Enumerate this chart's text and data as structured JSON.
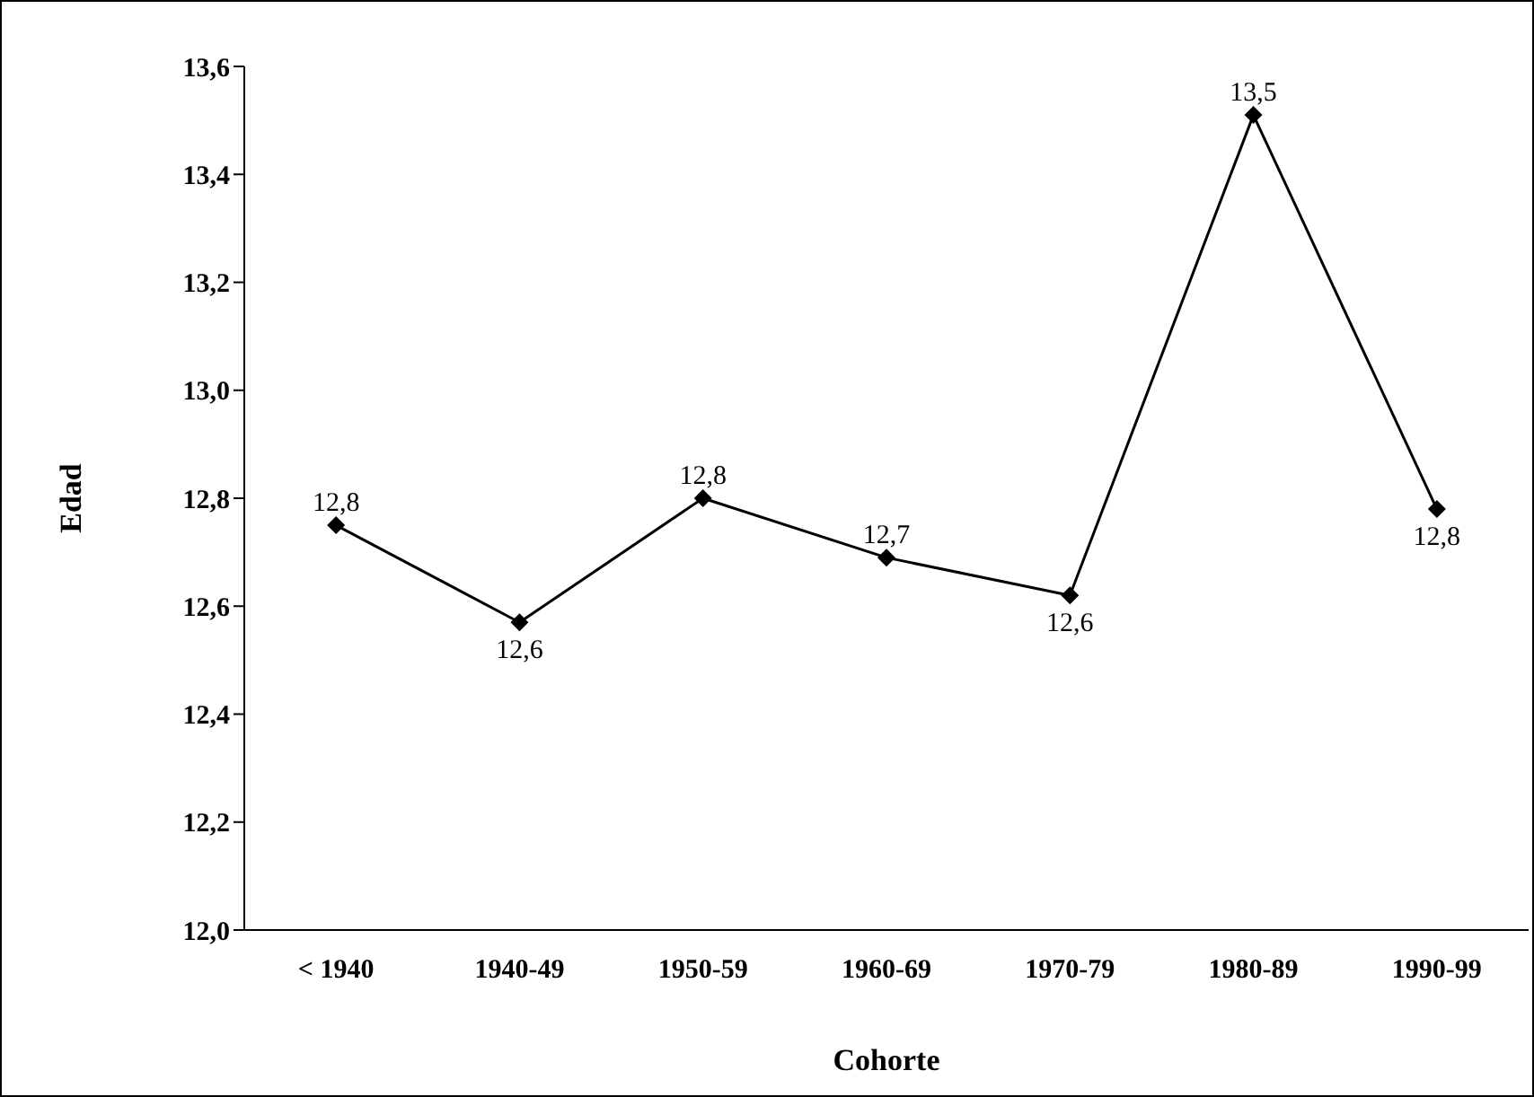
{
  "chart_data": {
    "type": "line",
    "xlabel": "Cohorte",
    "ylabel": "Edad",
    "categories": [
      "< 1940",
      "1940-49",
      "1950-59",
      "1960-69",
      "1970-79",
      "1980-89",
      "1990-99"
    ],
    "series": [
      {
        "color": "#000000",
        "values": [
          12.75,
          12.57,
          12.8,
          12.69,
          12.62,
          13.51,
          12.78
        ],
        "value_labels": [
          "12,8",
          "12,6",
          "12,8",
          "12,7",
          "12,6",
          "13,5",
          "12,8"
        ]
      }
    ],
    "ylim": [
      12.0,
      13.6
    ],
    "yticks": [
      {
        "value": 12.0,
        "label": "12,0"
      },
      {
        "value": 12.2,
        "label": "12,2"
      },
      {
        "value": 12.4,
        "label": "12,4"
      },
      {
        "value": 12.6,
        "label": "12,6"
      },
      {
        "value": 12.8,
        "label": "12,8"
      },
      {
        "value": 13.0,
        "label": "13,0"
      },
      {
        "value": 13.2,
        "label": "13,2"
      },
      {
        "value": 13.4,
        "label": "13,4"
      },
      {
        "value": 13.6,
        "label": "13,6"
      }
    ],
    "marker": "diamond",
    "line_style": "solid",
    "grid": false,
    "legend": false
  }
}
